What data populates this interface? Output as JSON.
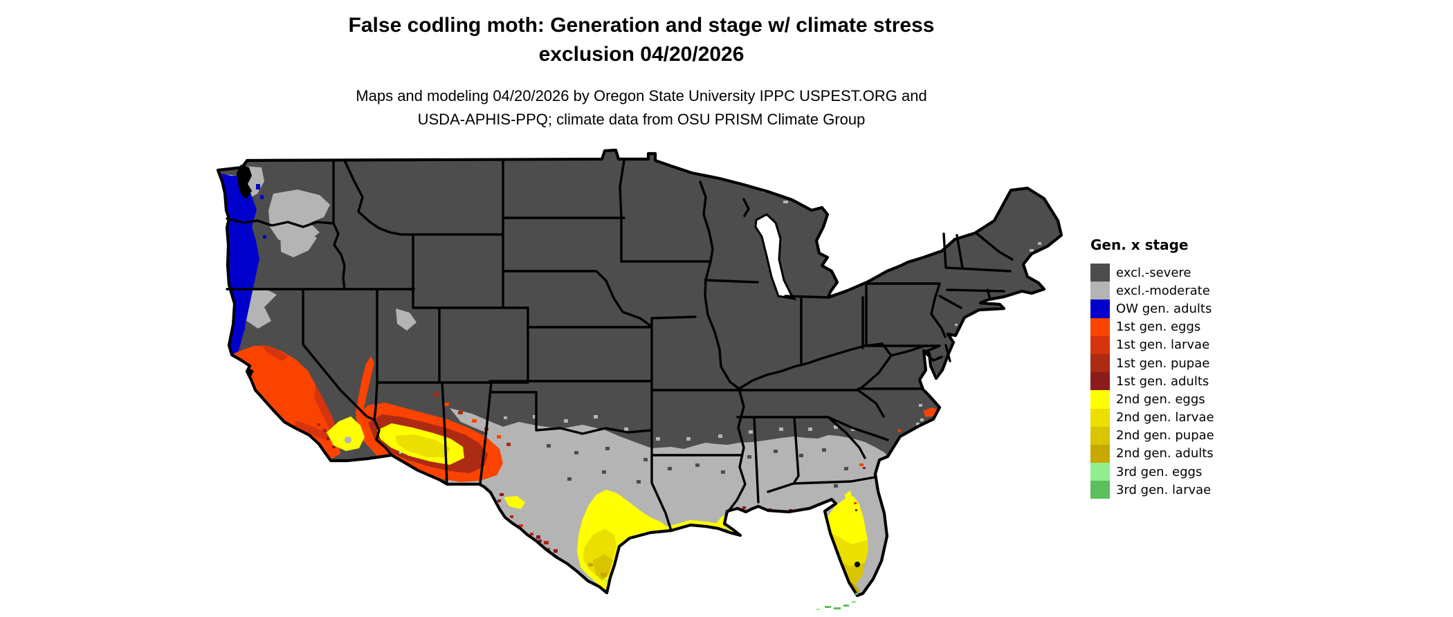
{
  "title": {
    "line1": "False codling moth: Generation and stage w/ climate stress",
    "line2": "exclusion 04/20/2026"
  },
  "subtitle": {
    "line1": "Maps and modeling 04/20/2026 by Oregon State University IPPC USPEST.ORG and",
    "line2": "USDA-APHIS-PPQ; climate data from OSU PRISM Climate Group"
  },
  "map": {
    "region": "Continental United States",
    "background_color": "#ffffff",
    "border_color": "#000000"
  },
  "legend": {
    "title": "Gen. x stage",
    "items": [
      {
        "key": "excl_severe",
        "label": "excl.-severe",
        "color": "#4d4d4d"
      },
      {
        "key": "excl_moderate",
        "label": "excl.-moderate",
        "color": "#b4b4b4"
      },
      {
        "key": "ow_adults",
        "label": "OW gen. adults",
        "color": "#0000cd"
      },
      {
        "key": "g1_eggs",
        "label": "1st gen. eggs",
        "color": "#fb4300"
      },
      {
        "key": "g1_larvae",
        "label": "1st gen. larvae",
        "color": "#d6340e"
      },
      {
        "key": "g1_pupae",
        "label": "1st gen. pupae",
        "color": "#ad2a14"
      },
      {
        "key": "g1_adults",
        "label": "1st gen. adults",
        "color": "#8c1c1c"
      },
      {
        "key": "g2_eggs",
        "label": "2nd gen. eggs",
        "color": "#ffff00"
      },
      {
        "key": "g2_larvae",
        "label": "2nd gen. larvae",
        "color": "#ebdf00"
      },
      {
        "key": "g2_pupae",
        "label": "2nd gen. pupae",
        "color": "#d9c400"
      },
      {
        "key": "g2_adults",
        "label": "2nd gen. adults",
        "color": "#c7a800"
      },
      {
        "key": "g3_eggs",
        "label": "3rd gen. eggs",
        "color": "#90ee90"
      },
      {
        "key": "g3_larvae",
        "label": "3rd gen. larvae",
        "color": "#5cbe5c"
      }
    ]
  }
}
